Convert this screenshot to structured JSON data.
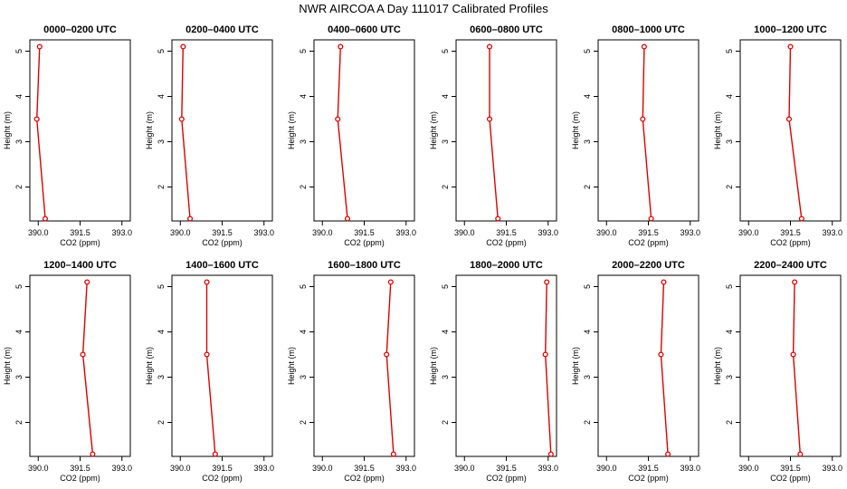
{
  "page": {
    "title": "NWR AIRCOA A  Day 111017  Calibrated Profiles"
  },
  "style": {
    "line_color": "#dd0000",
    "axis_color": "#000000",
    "background": "#ffffff"
  },
  "chart_data": [
    {
      "type": "line",
      "title": "0000–0200 UTC",
      "xlabel": "CO2 (ppm)",
      "ylabel": "Height (m)",
      "xlim": [
        389.7,
        393.3
      ],
      "ylim": [
        1.25,
        5.25
      ],
      "xticks": [
        "390.0",
        "391.5",
        "393.0"
      ],
      "yticks": [
        "2",
        "3",
        "4",
        "5"
      ],
      "x": [
        390.05,
        389.95,
        390.25
      ],
      "y": [
        5.1,
        3.5,
        1.3
      ]
    },
    {
      "type": "line",
      "title": "0200–0400 UTC",
      "xlabel": "CO2 (ppm)",
      "ylabel": "Height (m)",
      "xlim": [
        389.7,
        393.3
      ],
      "ylim": [
        1.25,
        5.25
      ],
      "xticks": [
        "390.0",
        "391.5",
        "393.0"
      ],
      "yticks": [
        "2",
        "3",
        "4",
        "5"
      ],
      "x": [
        390.1,
        390.05,
        390.35
      ],
      "y": [
        5.1,
        3.5,
        1.3
      ]
    },
    {
      "type": "line",
      "title": "0400–0600 UTC",
      "xlabel": "CO2 (ppm)",
      "ylabel": "Height (m)",
      "xlim": [
        389.7,
        393.3
      ],
      "ylim": [
        1.25,
        5.25
      ],
      "xticks": [
        "390.0",
        "391.5",
        "393.0"
      ],
      "yticks": [
        "2",
        "3",
        "4",
        "5"
      ],
      "x": [
        390.65,
        390.55,
        390.9
      ],
      "y": [
        5.1,
        3.5,
        1.3
      ]
    },
    {
      "type": "line",
      "title": "0600–0800 UTC",
      "xlabel": "CO2 (ppm)",
      "ylabel": "Height (m)",
      "xlim": [
        389.7,
        393.3
      ],
      "ylim": [
        1.25,
        5.25
      ],
      "xticks": [
        "390.0",
        "391.5",
        "393.0"
      ],
      "yticks": [
        "2",
        "3",
        "4",
        "5"
      ],
      "x": [
        390.9,
        390.9,
        391.2
      ],
      "y": [
        5.1,
        3.5,
        1.3
      ]
    },
    {
      "type": "line",
      "title": "0800–1000 UTC",
      "xlabel": "CO2 (ppm)",
      "ylabel": "Height (m)",
      "xlim": [
        389.7,
        393.3
      ],
      "ylim": [
        1.25,
        5.25
      ],
      "xticks": [
        "390.0",
        "391.5",
        "393.0"
      ],
      "yticks": [
        "2",
        "3",
        "4",
        "5"
      ],
      "x": [
        391.35,
        391.3,
        391.6
      ],
      "y": [
        5.1,
        3.5,
        1.3
      ]
    },
    {
      "type": "line",
      "title": "1000–1200 UTC",
      "xlabel": "CO2 (ppm)",
      "ylabel": "Height (m)",
      "xlim": [
        389.7,
        393.3
      ],
      "ylim": [
        1.25,
        5.25
      ],
      "xticks": [
        "390.0",
        "391.5",
        "393.0"
      ],
      "yticks": [
        "2",
        "3",
        "4",
        "5"
      ],
      "x": [
        391.5,
        391.45,
        391.9
      ],
      "y": [
        5.1,
        3.5,
        1.3
      ]
    },
    {
      "type": "line",
      "title": "1200–1400 UTC",
      "xlabel": "CO2 (ppm)",
      "ylabel": "Height (m)",
      "xlim": [
        389.7,
        393.3
      ],
      "ylim": [
        1.25,
        5.25
      ],
      "xticks": [
        "390.0",
        "391.5",
        "393.0"
      ],
      "yticks": [
        "2",
        "3",
        "4",
        "5"
      ],
      "x": [
        391.75,
        391.6,
        391.95
      ],
      "y": [
        5.1,
        3.5,
        1.3
      ]
    },
    {
      "type": "line",
      "title": "1400–1600 UTC",
      "xlabel": "CO2 (ppm)",
      "ylabel": "Height (m)",
      "xlim": [
        389.7,
        393.3
      ],
      "ylim": [
        1.25,
        5.25
      ],
      "xticks": [
        "390.0",
        "391.5",
        "393.0"
      ],
      "yticks": [
        "2",
        "3",
        "4",
        "5"
      ],
      "x": [
        390.95,
        390.95,
        391.25
      ],
      "y": [
        5.1,
        3.5,
        1.3
      ]
    },
    {
      "type": "line",
      "title": "1600–1800 UTC",
      "xlabel": "CO2 (ppm)",
      "ylabel": "Height (m)",
      "xlim": [
        389.7,
        393.3
      ],
      "ylim": [
        1.25,
        5.25
      ],
      "xticks": [
        "390.0",
        "391.5",
        "393.0"
      ],
      "yticks": [
        "2",
        "3",
        "4",
        "5"
      ],
      "x": [
        392.45,
        392.3,
        392.55
      ],
      "y": [
        5.1,
        3.5,
        1.3
      ]
    },
    {
      "type": "line",
      "title": "1800–2000 UTC",
      "xlabel": "CO2 (ppm)",
      "ylabel": "Height (m)",
      "xlim": [
        389.7,
        393.3
      ],
      "ylim": [
        1.25,
        5.25
      ],
      "xticks": [
        "390.0",
        "391.5",
        "393.0"
      ],
      "yticks": [
        "2",
        "3",
        "4",
        "5"
      ],
      "x": [
        392.95,
        392.9,
        393.1
      ],
      "y": [
        5.1,
        3.5,
        1.3
      ]
    },
    {
      "type": "line",
      "title": "2000–2200 UTC",
      "xlabel": "CO2 (ppm)",
      "ylabel": "Height (m)",
      "xlim": [
        389.7,
        393.3
      ],
      "ylim": [
        1.25,
        5.25
      ],
      "xticks": [
        "390.0",
        "391.5",
        "393.0"
      ],
      "yticks": [
        "2",
        "3",
        "4",
        "5"
      ],
      "x": [
        392.05,
        391.95,
        392.2
      ],
      "y": [
        5.1,
        3.5,
        1.3
      ]
    },
    {
      "type": "line",
      "title": "2200–2400 UTC",
      "xlabel": "CO2 (ppm)",
      "ylabel": "Height (m)",
      "xlim": [
        389.7,
        393.3
      ],
      "ylim": [
        1.25,
        5.25
      ],
      "xticks": [
        "390.0",
        "391.5",
        "393.0"
      ],
      "yticks": [
        "2",
        "3",
        "4",
        "5"
      ],
      "x": [
        391.65,
        391.6,
        391.85
      ],
      "y": [
        5.1,
        3.5,
        1.3
      ]
    }
  ]
}
